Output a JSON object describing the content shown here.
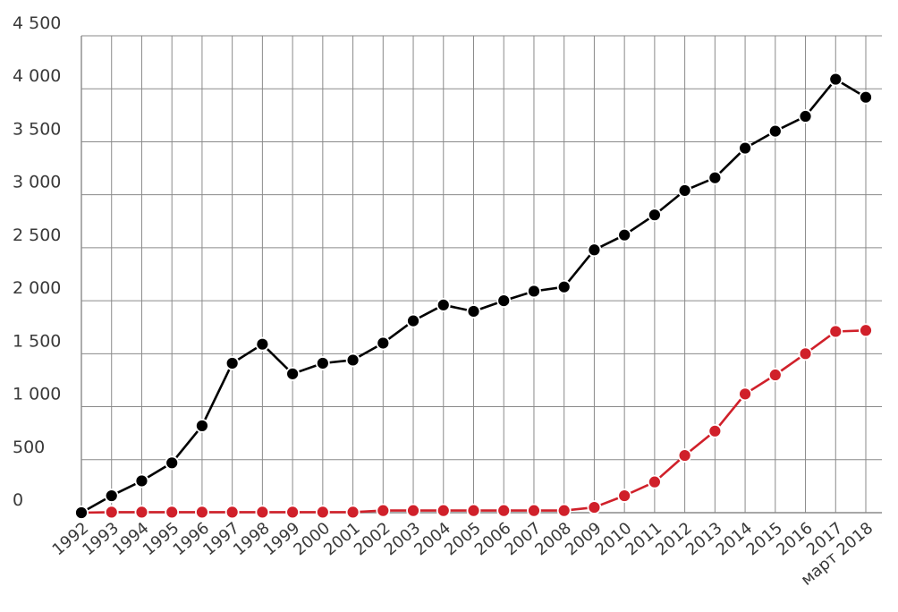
{
  "chart_data": {
    "type": "line",
    "title": "",
    "xlabel": "",
    "ylabel": "",
    "ylim": [
      0,
      4500
    ],
    "yticks": [
      0,
      500,
      1000,
      1500,
      2000,
      2500,
      3000,
      3500,
      4000,
      4500
    ],
    "ytick_labels": [
      "0",
      "500",
      "1 000",
      "1 500",
      "2 000",
      "2 500",
      "3 000",
      "3 500",
      "4 000",
      "4 500"
    ],
    "grid": true,
    "categories": [
      "1992",
      "1993",
      "1994",
      "1995",
      "1996",
      "1997",
      "1998",
      "1999",
      "2000",
      "2001",
      "2002",
      "2003",
      "2004",
      "2005",
      "2006",
      "2007",
      "2008",
      "2009",
      "2010",
      "2011",
      "2012",
      "2013",
      "2014",
      "2015",
      "2016",
      "2017",
      "март 2018"
    ],
    "series": [
      {
        "color": "#000000",
        "values": [
          0,
          160,
          300,
          470,
          820,
          1410,
          1590,
          1310,
          1410,
          1440,
          1600,
          1810,
          1960,
          1900,
          2000,
          2090,
          2130,
          2480,
          2620,
          2810,
          3040,
          3160,
          3440,
          3600,
          3740,
          4090,
          3920
        ]
      },
      {
        "color": "#d0202a",
        "values": [
          0,
          5,
          5,
          5,
          5,
          5,
          5,
          5,
          5,
          5,
          20,
          20,
          20,
          20,
          20,
          20,
          20,
          50,
          160,
          290,
          540,
          770,
          1120,
          1300,
          1500,
          1710,
          1720
        ]
      }
    ]
  }
}
